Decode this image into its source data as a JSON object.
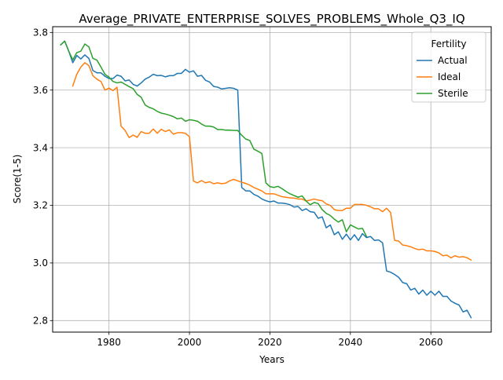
{
  "chart_data": {
    "type": "line",
    "title": "Average_PRIVATE_ENTERPRISE_SOLVES_PROBLEMS_Whole_Q3_IQ",
    "xlabel": "Years",
    "ylabel": "Score(1-5)",
    "xlim": [
      1966,
      2075
    ],
    "ylim": [
      2.76,
      3.82
    ],
    "xticks": [
      1980,
      2000,
      2020,
      2040,
      2060
    ],
    "yticks": [
      2.8,
      3.0,
      3.2,
      3.4,
      3.6,
      3.8
    ],
    "xtick_labels": [
      "1980",
      "2000",
      "2020",
      "2040",
      "2060"
    ],
    "ytick_labels": [
      "2.8",
      "3.0",
      "3.2",
      "3.4",
      "3.6",
      "3.8"
    ],
    "grid": true,
    "legend": {
      "title": "Fertility",
      "position": "top-right"
    },
    "series": [
      {
        "name": "Actual",
        "color": "#1f77b4",
        "x_start": 1968,
        "values": [
          3.757,
          3.77,
          3.735,
          3.695,
          3.72,
          3.708,
          3.722,
          3.71,
          3.668,
          3.66,
          3.66,
          3.648,
          3.64,
          3.64,
          3.652,
          3.648,
          3.632,
          3.635,
          3.62,
          3.614,
          3.625,
          3.638,
          3.645,
          3.655,
          3.65,
          3.651,
          3.646,
          3.65,
          3.65,
          3.658,
          3.658,
          3.672,
          3.662,
          3.667,
          3.648,
          3.651,
          3.634,
          3.628,
          3.613,
          3.61,
          3.604,
          3.606,
          3.608,
          3.606,
          3.6,
          3.262,
          3.25,
          3.25,
          3.238,
          3.232,
          3.222,
          3.216,
          3.212,
          3.215,
          3.208,
          3.208,
          3.206,
          3.202,
          3.194,
          3.196,
          3.182,
          3.188,
          3.178,
          3.176,
          3.155,
          3.16,
          3.122,
          3.132,
          3.098,
          3.108,
          3.082,
          3.1,
          3.08,
          3.098,
          3.078,
          3.102,
          3.088,
          3.092,
          3.078,
          3.08,
          3.07,
          2.972,
          2.968,
          2.96,
          2.95,
          2.932,
          2.928,
          2.906,
          2.912,
          2.892,
          2.906,
          2.888,
          2.902,
          2.888,
          2.902,
          2.884,
          2.884,
          2.868,
          2.86,
          2.854,
          2.83,
          2.836,
          2.81
        ]
      },
      {
        "name": "Ideal",
        "color": "#ff7f0e",
        "x_start": 1971,
        "values": [
          3.614,
          3.655,
          3.68,
          3.695,
          3.685,
          3.65,
          3.638,
          3.63,
          3.6,
          3.607,
          3.598,
          3.61,
          3.475,
          3.46,
          3.435,
          3.444,
          3.436,
          3.456,
          3.45,
          3.45,
          3.465,
          3.45,
          3.464,
          3.456,
          3.462,
          3.447,
          3.452,
          3.452,
          3.45,
          3.438,
          3.284,
          3.278,
          3.286,
          3.278,
          3.282,
          3.275,
          3.278,
          3.275,
          3.277,
          3.285,
          3.29,
          3.285,
          3.28,
          3.276,
          3.27,
          3.262,
          3.256,
          3.25,
          3.24,
          3.24,
          3.24,
          3.235,
          3.23,
          3.228,
          3.226,
          3.225,
          3.222,
          3.222,
          3.215,
          3.218,
          3.222,
          3.218,
          3.216,
          3.205,
          3.2,
          3.185,
          3.182,
          3.182,
          3.19,
          3.19,
          3.203,
          3.203,
          3.203,
          3.2,
          3.195,
          3.188,
          3.188,
          3.178,
          3.19,
          3.175,
          3.078,
          3.076,
          3.062,
          3.06,
          3.056,
          3.05,
          3.046,
          3.048,
          3.042,
          3.042,
          3.04,
          3.035,
          3.025,
          3.027,
          3.018,
          3.025,
          3.02,
          3.022,
          3.018,
          3.01
        ]
      },
      {
        "name": "Sterile",
        "color": "#2ca02c",
        "x_start": 1968,
        "values": [
          3.757,
          3.77,
          3.735,
          3.705,
          3.73,
          3.735,
          3.76,
          3.75,
          3.71,
          3.704,
          3.68,
          3.655,
          3.645,
          3.63,
          3.625,
          3.628,
          3.62,
          3.612,
          3.605,
          3.585,
          3.575,
          3.548,
          3.54,
          3.535,
          3.526,
          3.52,
          3.517,
          3.513,
          3.508,
          3.5,
          3.503,
          3.492,
          3.497,
          3.495,
          3.492,
          3.482,
          3.475,
          3.475,
          3.472,
          3.463,
          3.463,
          3.461,
          3.461,
          3.46,
          3.46,
          3.443,
          3.43,
          3.425,
          3.395,
          3.388,
          3.38,
          3.278,
          3.265,
          3.262,
          3.266,
          3.258,
          3.248,
          3.24,
          3.234,
          3.228,
          3.233,
          3.215,
          3.202,
          3.21,
          3.206,
          3.185,
          3.172,
          3.165,
          3.152,
          3.142,
          3.15,
          3.108,
          3.132,
          3.125,
          3.118,
          3.12,
          3.092
        ]
      }
    ]
  }
}
